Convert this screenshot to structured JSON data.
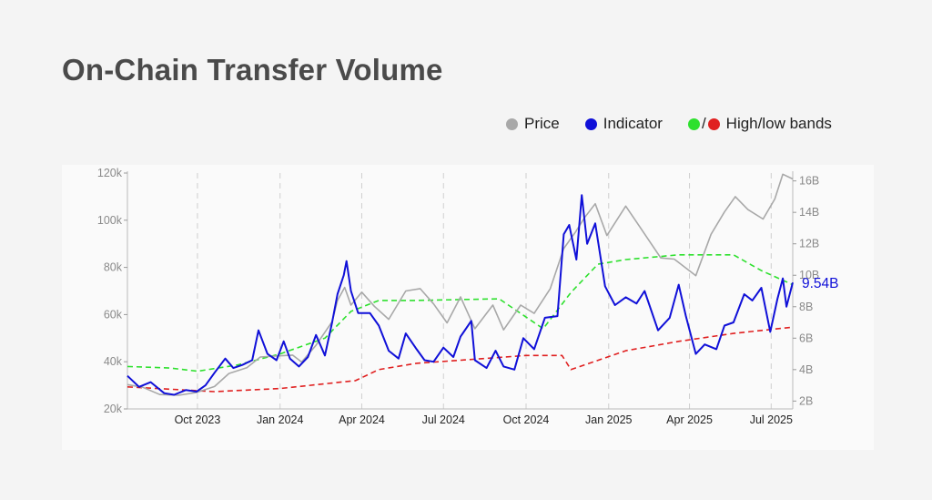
{
  "title": "On-Chain Transfer Volume",
  "legend": {
    "price": "Price",
    "indicator": "Indicator",
    "bands_slash": "/",
    "bands": "High/low bands"
  },
  "colors": {
    "price": "#a8a8a8",
    "indicator": "#1010d8",
    "high_band": "#2ee02e",
    "low_band": "#e02020",
    "background": "#f4f4f4"
  },
  "chart_data": {
    "type": "line",
    "x_tick_labels": [
      "Oct 2023",
      "Jan 2024",
      "Apr 2024",
      "Jul 2024",
      "Oct 2024",
      "Jan 2025",
      "Apr 2025",
      "Jul 2025"
    ],
    "y_left": {
      "ticks": [
        20000,
        40000,
        60000,
        80000,
        100000,
        120000
      ],
      "tick_labels": [
        "20k",
        "40k",
        "60k",
        "80k",
        "100k",
        "120k"
      ],
      "range": [
        20000,
        120000
      ]
    },
    "y_right": {
      "ticks": [
        2,
        4,
        6,
        8,
        10,
        12,
        14,
        16
      ],
      "tick_labels": [
        "2B",
        "4B",
        "6B",
        "8B",
        "10B",
        "12B",
        "14B",
        "16B"
      ],
      "range": [
        1.5,
        16.5
      ]
    },
    "last_value_label": "9.54B",
    "grid": "vertical dashed at x ticks",
    "x_range": [
      "2023-07-15",
      "2025-07-25"
    ],
    "series": [
      {
        "name": "Price",
        "axis": "left",
        "style": "solid",
        "points": [
          [
            "2023-07-15",
            30300
          ],
          [
            "2023-08-01",
            29200
          ],
          [
            "2023-08-20",
            26100
          ],
          [
            "2023-09-10",
            25800
          ],
          [
            "2023-09-30",
            27000
          ],
          [
            "2023-10-20",
            29500
          ],
          [
            "2023-11-05",
            35000
          ],
          [
            "2023-11-25",
            37500
          ],
          [
            "2023-12-10",
            42000
          ],
          [
            "2023-12-31",
            42500
          ],
          [
            "2024-01-15",
            42800
          ],
          [
            "2024-01-25",
            39900
          ],
          [
            "2024-02-10",
            47000
          ],
          [
            "2024-02-28",
            57000
          ],
          [
            "2024-03-05",
            66000
          ],
          [
            "2024-03-13",
            71500
          ],
          [
            "2024-03-20",
            64000
          ],
          [
            "2024-04-01",
            69500
          ],
          [
            "2024-04-15",
            63500
          ],
          [
            "2024-05-01",
            58000
          ],
          [
            "2024-05-20",
            70000
          ],
          [
            "2024-06-05",
            71000
          ],
          [
            "2024-06-20",
            64500
          ],
          [
            "2024-07-05",
            56500
          ],
          [
            "2024-07-20",
            67500
          ],
          [
            "2024-08-05",
            54000
          ],
          [
            "2024-08-25",
            64000
          ],
          [
            "2024-09-06",
            53500
          ],
          [
            "2024-09-25",
            64000
          ],
          [
            "2024-10-10",
            60500
          ],
          [
            "2024-10-28",
            71000
          ],
          [
            "2024-11-12",
            88000
          ],
          [
            "2024-11-25",
            95000
          ],
          [
            "2024-12-05",
            101000
          ],
          [
            "2024-12-17",
            107000
          ],
          [
            "2024-12-30",
            93500
          ],
          [
            "2025-01-20",
            106000
          ],
          [
            "2025-02-05",
            97000
          ],
          [
            "2025-02-28",
            84000
          ],
          [
            "2025-03-15",
            83500
          ],
          [
            "2025-04-08",
            76500
          ],
          [
            "2025-04-25",
            94000
          ],
          [
            "2025-05-10",
            103500
          ],
          [
            "2025-05-22",
            110000
          ],
          [
            "2025-06-05",
            104500
          ],
          [
            "2025-06-22",
            100500
          ],
          [
            "2025-07-05",
            109000
          ],
          [
            "2025-07-14",
            119500
          ],
          [
            "2025-07-25",
            117500
          ]
        ]
      },
      {
        "name": "Indicator",
        "axis": "right",
        "style": "solid",
        "points": [
          [
            "2023-07-15",
            3.6
          ],
          [
            "2023-07-28",
            2.9
          ],
          [
            "2023-08-10",
            3.2
          ],
          [
            "2023-08-25",
            2.5
          ],
          [
            "2023-09-05",
            2.4
          ],
          [
            "2023-09-18",
            2.7
          ],
          [
            "2023-09-30",
            2.6
          ],
          [
            "2023-10-10",
            3.0
          ],
          [
            "2023-10-20",
            3.8
          ],
          [
            "2023-11-01",
            4.7
          ],
          [
            "2023-11-10",
            4.1
          ],
          [
            "2023-11-20",
            4.3
          ],
          [
            "2023-12-01",
            4.6
          ],
          [
            "2023-12-08",
            6.5
          ],
          [
            "2023-12-18",
            5.0
          ],
          [
            "2023-12-28",
            4.6
          ],
          [
            "2024-01-05",
            5.8
          ],
          [
            "2024-01-12",
            4.7
          ],
          [
            "2024-01-22",
            4.2
          ],
          [
            "2024-02-01",
            4.8
          ],
          [
            "2024-02-10",
            6.2
          ],
          [
            "2024-02-20",
            4.9
          ],
          [
            "2024-02-28",
            7.0
          ],
          [
            "2024-03-05",
            8.8
          ],
          [
            "2024-03-12",
            10.0
          ],
          [
            "2024-03-15",
            10.9
          ],
          [
            "2024-03-20",
            9.0
          ],
          [
            "2024-03-28",
            7.6
          ],
          [
            "2024-04-10",
            7.6
          ],
          [
            "2024-04-20",
            6.8
          ],
          [
            "2024-05-01",
            5.2
          ],
          [
            "2024-05-12",
            4.7
          ],
          [
            "2024-05-20",
            6.3
          ],
          [
            "2024-06-01",
            5.3
          ],
          [
            "2024-06-10",
            4.6
          ],
          [
            "2024-06-20",
            4.5
          ],
          [
            "2024-07-01",
            5.4
          ],
          [
            "2024-07-12",
            4.8
          ],
          [
            "2024-07-20",
            6.1
          ],
          [
            "2024-08-01",
            7.1
          ],
          [
            "2024-08-05",
            4.6
          ],
          [
            "2024-08-18",
            4.1
          ],
          [
            "2024-08-28",
            5.2
          ],
          [
            "2024-09-06",
            4.2
          ],
          [
            "2024-09-18",
            4.0
          ],
          [
            "2024-09-28",
            6.0
          ],
          [
            "2024-10-10",
            5.3
          ],
          [
            "2024-10-22",
            7.3
          ],
          [
            "2024-11-05",
            7.4
          ],
          [
            "2024-11-12",
            12.6
          ],
          [
            "2024-11-18",
            13.2
          ],
          [
            "2024-11-26",
            11.0
          ],
          [
            "2024-12-02",
            15.1
          ],
          [
            "2024-12-08",
            12.0
          ],
          [
            "2024-12-17",
            13.3
          ],
          [
            "2024-12-28",
            9.3
          ],
          [
            "2025-01-08",
            8.1
          ],
          [
            "2025-01-20",
            8.6
          ],
          [
            "2025-02-01",
            8.2
          ],
          [
            "2025-02-10",
            9.0
          ],
          [
            "2025-02-25",
            6.5
          ],
          [
            "2025-03-10",
            7.3
          ],
          [
            "2025-03-20",
            9.4
          ],
          [
            "2025-03-28",
            7.4
          ],
          [
            "2025-04-08",
            5.0
          ],
          [
            "2025-04-18",
            5.6
          ],
          [
            "2025-05-01",
            5.3
          ],
          [
            "2025-05-10",
            6.8
          ],
          [
            "2025-05-20",
            7.0
          ],
          [
            "2025-06-01",
            8.8
          ],
          [
            "2025-06-10",
            8.4
          ],
          [
            "2025-06-20",
            9.2
          ],
          [
            "2025-06-30",
            6.4
          ],
          [
            "2025-07-08",
            8.5
          ],
          [
            "2025-07-14",
            9.8
          ],
          [
            "2025-07-18",
            8.0
          ],
          [
            "2025-07-25",
            9.54
          ]
        ]
      },
      {
        "name": "High band",
        "axis": "right",
        "style": "dashed",
        "points": [
          [
            "2023-07-15",
            4.2
          ],
          [
            "2023-09-01",
            4.1
          ],
          [
            "2023-10-01",
            3.9
          ],
          [
            "2023-11-15",
            4.3
          ],
          [
            "2024-01-01",
            5.0
          ],
          [
            "2024-02-20",
            6.0
          ],
          [
            "2024-03-20",
            7.7
          ],
          [
            "2024-04-20",
            8.4
          ],
          [
            "2024-06-01",
            8.4
          ],
          [
            "2024-09-01",
            8.5
          ],
          [
            "2024-10-20",
            6.6
          ],
          [
            "2024-11-20",
            8.9
          ],
          [
            "2024-12-20",
            10.7
          ],
          [
            "2025-01-20",
            11.0
          ],
          [
            "2025-03-20",
            11.3
          ],
          [
            "2025-05-20",
            11.3
          ],
          [
            "2025-06-20",
            10.3
          ],
          [
            "2025-07-25",
            9.4
          ]
        ]
      },
      {
        "name": "Low band",
        "axis": "right",
        "style": "dashed",
        "points": [
          [
            "2023-07-15",
            2.9
          ],
          [
            "2023-10-20",
            2.6
          ],
          [
            "2024-01-01",
            2.8
          ],
          [
            "2024-02-20",
            3.1
          ],
          [
            "2024-03-25",
            3.3
          ],
          [
            "2024-04-20",
            4.0
          ],
          [
            "2024-06-01",
            4.4
          ],
          [
            "2024-08-15",
            4.7
          ],
          [
            "2024-10-01",
            4.9
          ],
          [
            "2024-11-10",
            4.9
          ],
          [
            "2024-11-20",
            4.0
          ],
          [
            "2025-01-20",
            5.2
          ],
          [
            "2025-03-20",
            5.8
          ],
          [
            "2025-05-20",
            6.3
          ],
          [
            "2025-07-25",
            6.7
          ]
        ]
      }
    ]
  }
}
